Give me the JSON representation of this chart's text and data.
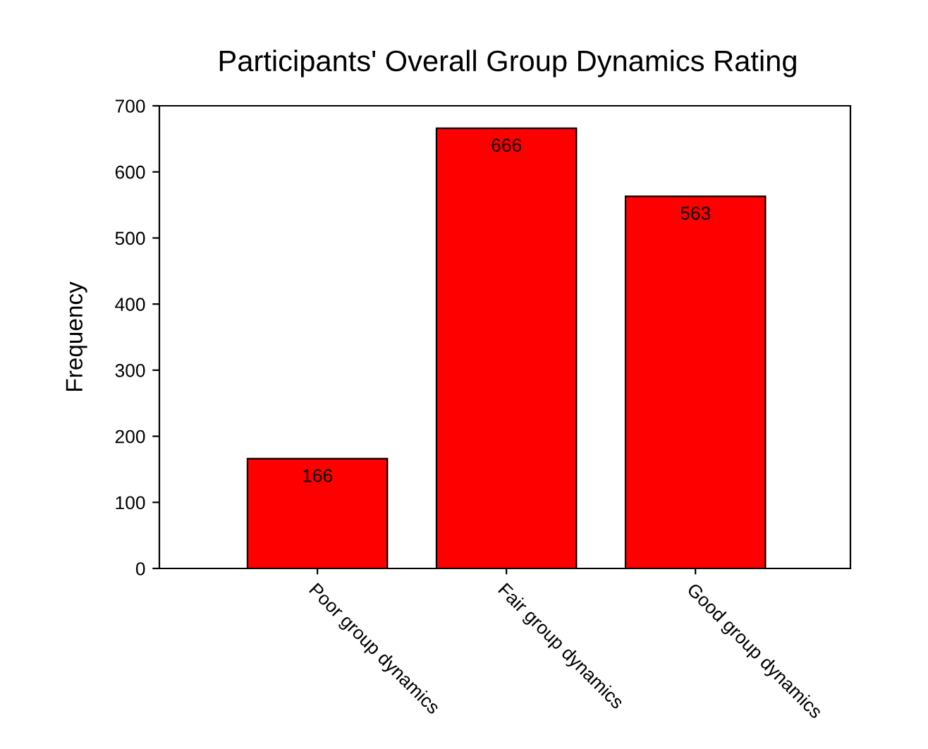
{
  "chart_data": {
    "type": "bar",
    "title": "Participants' Overall Group Dynamics Rating",
    "ylabel": "Frequency",
    "categories": [
      "Poor group dynamics",
      "Fair group dynamics",
      "Good group dynamics"
    ],
    "values": [
      166,
      666,
      563
    ],
    "color": "#ff0000",
    "data_labels": true,
    "ylim": [
      0,
      700
    ],
    "yticks": [
      0,
      100,
      200,
      300,
      400,
      500,
      600,
      700
    ],
    "grid": false,
    "legend": false
  }
}
